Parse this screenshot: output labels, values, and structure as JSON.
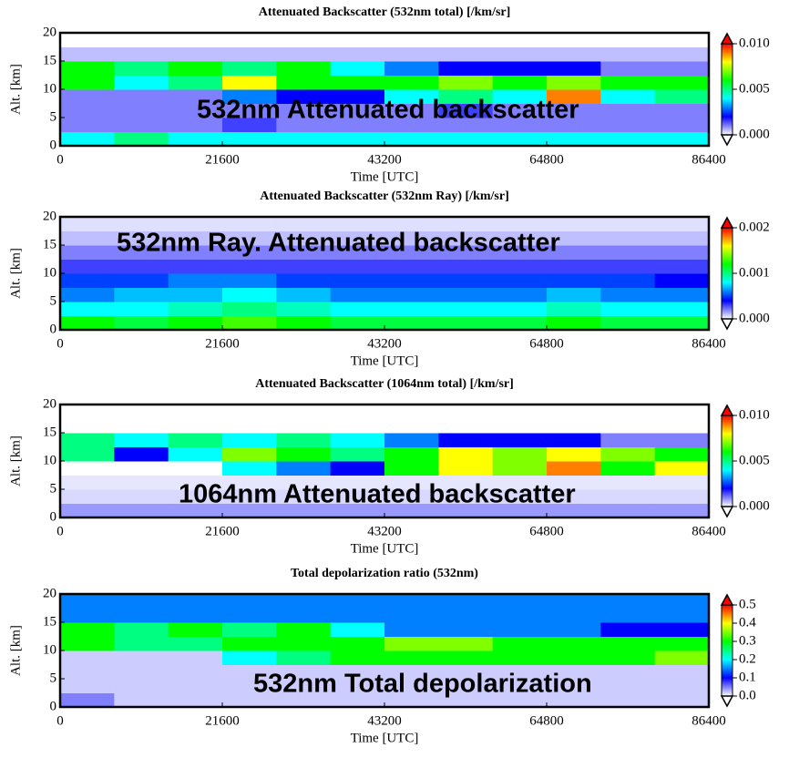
{
  "chart_data": [
    {
      "type": "heatmap",
      "title": "Attenuated Backscatter (532nm total) [/km/sr]",
      "annotation": "532nm Attenuated backscatter",
      "xlabel": "Time [UTC]",
      "ylabel": "Alt. [km]",
      "xlim": [
        0,
        86400
      ],
      "xticks": [
        0,
        21600,
        43200,
        64800,
        86400
      ],
      "ylim": [
        0,
        20
      ],
      "yticks": [
        0,
        5,
        10,
        15,
        20
      ],
      "xbins": [
        0,
        7200,
        14400,
        21600,
        28800,
        36000,
        43200,
        50400,
        57600,
        64800,
        72000,
        79200,
        86400
      ],
      "ybins": [
        0,
        2.5,
        5,
        7.5,
        10,
        12.5,
        15,
        17.5,
        20
      ],
      "z": [
        [
          0.004,
          0.005,
          0.004,
          0.004,
          0.004,
          0.004,
          0.004,
          0.004,
          0.004,
          0.004,
          0.004,
          0.004
        ],
        [
          0.001,
          0.001,
          0.001,
          0.0015,
          0.001,
          0.001,
          0.001,
          0.001,
          0.001,
          0.001,
          0.001,
          0.001
        ],
        [
          0.001,
          0.001,
          0.001,
          0.001,
          0.001,
          0.001,
          0.001,
          0.0015,
          0.001,
          0.001,
          0.001,
          0.001
        ],
        [
          0.001,
          0.001,
          0.001,
          0.003,
          0.002,
          0.002,
          0.004,
          0.005,
          0.004,
          0.009,
          0.004,
          0.005
        ],
        [
          0.006,
          0.004,
          0.005,
          0.008,
          0.006,
          0.006,
          0.006,
          0.007,
          0.006,
          0.007,
          0.006,
          0.006
        ],
        [
          0.006,
          0.005,
          0.006,
          0.005,
          0.006,
          0.004,
          0.003,
          0.002,
          0.002,
          0.002,
          0.001,
          0.001
        ],
        [
          0.0005,
          0.0005,
          0.0005,
          0.0005,
          0.0005,
          0.0005,
          0.0005,
          0.0005,
          0.0005,
          0.0005,
          0.0005,
          0.0005
        ],
        [
          0,
          0,
          0,
          0,
          0,
          0,
          0,
          0,
          0,
          0,
          0,
          0
        ]
      ],
      "clim": [
        0,
        0.01
      ],
      "cticks": [
        {
          "value": 0,
          "label": "0.000"
        },
        {
          "value": 0.005,
          "label": "0.005"
        },
        {
          "value": 0.01,
          "label": "0.010"
        }
      ],
      "colormap": [
        "#ffffff",
        "#0000ff",
        "#00ffff",
        "#00ff00",
        "#ffff00",
        "#ff0000"
      ]
    },
    {
      "type": "heatmap",
      "title": "Attenuated Backscatter (532nm Ray) [/km/sr]",
      "annotation": "532nm Ray. Attenuated backscatter",
      "xlabel": "Time [UTC]",
      "ylabel": "Alt. [km]",
      "xlim": [
        0,
        86400
      ],
      "xticks": [
        0,
        21600,
        43200,
        64800,
        86400
      ],
      "ylim": [
        0,
        20
      ],
      "yticks": [
        0,
        5,
        10,
        15,
        20
      ],
      "xbins": [
        0,
        7200,
        14400,
        21600,
        28800,
        36000,
        43200,
        50400,
        57600,
        64800,
        72000,
        79200,
        86400
      ],
      "ybins": [
        0,
        2.5,
        5,
        7.5,
        10,
        12.5,
        15,
        17.5,
        20
      ],
      "z": [
        [
          0.0012,
          0.0011,
          0.0012,
          0.0013,
          0.0012,
          0.0011,
          0.0011,
          0.0011,
          0.0011,
          0.0012,
          0.0011,
          0.0011
        ],
        [
          0.0008,
          0.0008,
          0.0009,
          0.001,
          0.0009,
          0.0008,
          0.0008,
          0.0008,
          0.0008,
          0.0009,
          0.0008,
          0.0008
        ],
        [
          0.0006,
          0.0007,
          0.0007,
          0.0008,
          0.0007,
          0.0006,
          0.0006,
          0.0006,
          0.0006,
          0.0007,
          0.0006,
          0.0006
        ],
        [
          0.0005,
          0.0005,
          0.0006,
          0.0006,
          0.0005,
          0.0005,
          0.0005,
          0.0005,
          0.0005,
          0.0005,
          0.0005,
          0.0004
        ],
        [
          0.0003,
          0.0003,
          0.0003,
          0.0003,
          0.0003,
          0.0003,
          0.0003,
          0.0003,
          0.0003,
          0.0003,
          0.0003,
          0.0003
        ],
        [
          0.0002,
          0.0002,
          0.0002,
          0.0002,
          0.0002,
          0.0002,
          0.0002,
          0.0002,
          0.0002,
          0.0002,
          0.0002,
          0.0002
        ],
        [
          0.0001,
          0.0001,
          0.0001,
          0.0001,
          0.0001,
          0.0001,
          0.0001,
          0.0001,
          0.0001,
          0.0001,
          0.0001,
          0.0001
        ],
        [
          5e-05,
          5e-05,
          5e-05,
          5e-05,
          5e-05,
          5e-05,
          5e-05,
          5e-05,
          5e-05,
          5e-05,
          5e-05,
          5e-05
        ]
      ],
      "clim": [
        0,
        0.002
      ],
      "cticks": [
        {
          "value": 0,
          "label": "0.000"
        },
        {
          "value": 0.001,
          "label": "0.001"
        },
        {
          "value": 0.002,
          "label": "0.002"
        }
      ],
      "colormap": [
        "#ffffff",
        "#0000ff",
        "#00ffff",
        "#00ff00",
        "#ffff00",
        "#ff0000"
      ]
    },
    {
      "type": "heatmap",
      "title": "Attenuated Backscatter (1064nm total) [/km/sr]",
      "annotation": "1064nm Attenuated backscatter",
      "xlabel": "Time [UTC]",
      "ylabel": "Alt. [km]",
      "xlim": [
        0,
        86400
      ],
      "xticks": [
        0,
        21600,
        43200,
        64800,
        86400
      ],
      "ylim": [
        0,
        20
      ],
      "yticks": [
        0,
        5,
        10,
        15,
        20
      ],
      "xbins": [
        0,
        7200,
        14400,
        21600,
        28800,
        36000,
        43200,
        50400,
        57600,
        64800,
        72000,
        79200,
        86400
      ],
      "ybins": [
        0,
        2.5,
        5,
        7.5,
        10,
        12.5,
        15,
        17.5,
        20
      ],
      "z": [
        [
          0.0008,
          0.0008,
          0.0008,
          0.0008,
          0.0008,
          0.0008,
          0.0008,
          0.0008,
          0.0008,
          0.0008,
          0.0008,
          0.0008
        ],
        [
          0.0003,
          0.0003,
          0.0003,
          0.0003,
          0.0003,
          0.0003,
          0.0003,
          0.0003,
          0.0003,
          0.0003,
          0.0003,
          0.0003
        ],
        [
          0.0002,
          0.0002,
          0.0002,
          0.0002,
          0.0002,
          0.0002,
          0.0002,
          0.0002,
          0.0002,
          0.0002,
          0.0002,
          0.0002
        ],
        [
          0,
          0,
          0,
          0.004,
          0.003,
          0.002,
          0.006,
          0.008,
          0.007,
          0.009,
          0.006,
          0.008
        ],
        [
          0.005,
          0.002,
          0.004,
          0.007,
          0.006,
          0.005,
          0.006,
          0.008,
          0.007,
          0.008,
          0.007,
          0.006
        ],
        [
          0.005,
          0.004,
          0.005,
          0.004,
          0.005,
          0.004,
          0.003,
          0.002,
          0.002,
          0.002,
          0.001,
          0.001
        ],
        [
          0,
          0,
          0,
          0,
          0,
          0,
          0,
          0,
          0,
          0,
          0,
          0
        ],
        [
          0,
          0,
          0,
          0,
          0,
          0,
          0,
          0,
          0,
          0,
          0,
          0
        ]
      ],
      "clim": [
        0,
        0.01
      ],
      "cticks": [
        {
          "value": 0,
          "label": "0.000"
        },
        {
          "value": 0.005,
          "label": "0.005"
        },
        {
          "value": 0.01,
          "label": "0.010"
        }
      ],
      "colormap": [
        "#ffffff",
        "#0000ff",
        "#00ffff",
        "#00ff00",
        "#ffff00",
        "#ff0000"
      ]
    },
    {
      "type": "heatmap",
      "title": "Total depolarization ratio (532nm)",
      "annotation": "532nm Total depolarization",
      "xlabel": "Time [UTC]",
      "ylabel": "Alt. [km]",
      "xlim": [
        0,
        86400
      ],
      "xticks": [
        0,
        21600,
        43200,
        64800,
        86400
      ],
      "ylim": [
        0,
        20
      ],
      "yticks": [
        0,
        5,
        10,
        15,
        20
      ],
      "xbins": [
        0,
        7200,
        14400,
        21600,
        28800,
        36000,
        43200,
        50400,
        57600,
        64800,
        72000,
        79200,
        86400
      ],
      "ybins": [
        0,
        2.5,
        5,
        7.5,
        10,
        12.5,
        15,
        17.5,
        20
      ],
      "z": [
        [
          0.05,
          0.02,
          0.02,
          0.02,
          0.02,
          0.02,
          0.02,
          0.02,
          0.02,
          0.02,
          0.02,
          0.02
        ],
        [
          0.02,
          0.02,
          0.02,
          0.02,
          0.02,
          0.02,
          0.02,
          0.02,
          0.02,
          0.02,
          0.02,
          0.02
        ],
        [
          0.02,
          0.02,
          0.02,
          0.02,
          0.02,
          0.02,
          0.02,
          0.02,
          0.02,
          0.02,
          0.02,
          0.02
        ],
        [
          0.02,
          0.02,
          0.02,
          0.2,
          0.25,
          0.3,
          0.3,
          0.3,
          0.3,
          0.3,
          0.3,
          0.35
        ],
        [
          0.3,
          0.25,
          0.25,
          0.3,
          0.3,
          0.3,
          0.35,
          0.35,
          0.3,
          0.3,
          0.3,
          0.3
        ],
        [
          0.3,
          0.25,
          0.3,
          0.25,
          0.3,
          0.2,
          0.15,
          0.15,
          0.15,
          0.15,
          0.1,
          0.1
        ],
        [
          0.15,
          0.15,
          0.15,
          0.15,
          0.15,
          0.15,
          0.15,
          0.15,
          0.15,
          0.15,
          0.15,
          0.15
        ],
        [
          0.15,
          0.15,
          0.15,
          0.15,
          0.15,
          0.15,
          0.15,
          0.15,
          0.15,
          0.15,
          0.15,
          0.15
        ]
      ],
      "clim": [
        0,
        0.5
      ],
      "cticks": [
        {
          "value": 0,
          "label": "0.0"
        },
        0.1,
        0.2,
        0.3,
        0.4,
        0.5
      ],
      "colormap": [
        "#ffffff",
        "#0000ff",
        "#00ffff",
        "#00ff00",
        "#ffff00",
        "#ff0000"
      ]
    }
  ]
}
